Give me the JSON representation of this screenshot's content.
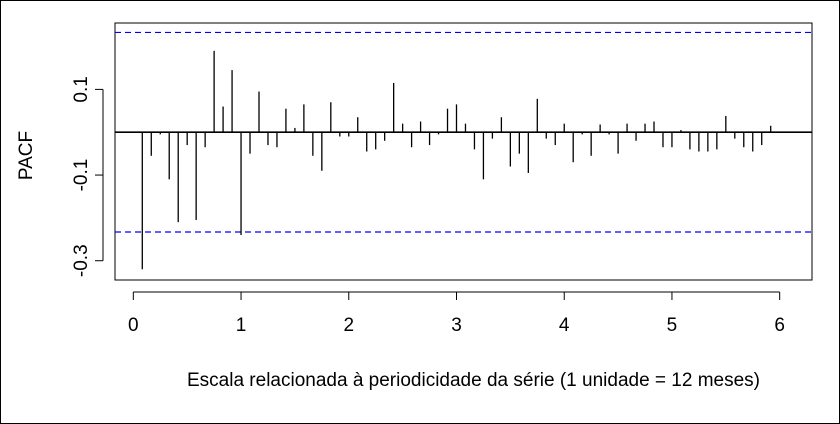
{
  "chart_data": {
    "type": "bar",
    "xlabel": "Escala relacionada à periodicidade da série (1 unidade = 12 meses)",
    "ylabel": "PACF",
    "xlim": [
      -0.17,
      6.3
    ],
    "ylim": [
      -0.345,
      0.255
    ],
    "x_ticks": [
      0,
      1,
      2,
      3,
      4,
      5,
      6
    ],
    "x_tick_labels": [
      "0",
      "1",
      "2",
      "3",
      "4",
      "5",
      "6"
    ],
    "y_ticks": [
      -0.3,
      -0.1,
      0.1
    ],
    "y_tick_labels": [
      "-0.3",
      "-0.1",
      "0.1"
    ],
    "confidence_bounds": [
      0.233,
      -0.233
    ],
    "bound_color": "#0000ff",
    "bar_color": "#000000",
    "grid": false,
    "x": [
      0.0833,
      0.1667,
      0.25,
      0.3333,
      0.4167,
      0.5,
      0.5833,
      0.6667,
      0.75,
      0.8333,
      0.9167,
      1.0,
      1.0833,
      1.1667,
      1.25,
      1.3333,
      1.4167,
      1.5,
      1.5833,
      1.6667,
      1.75,
      1.8333,
      1.9167,
      2.0,
      2.0833,
      2.1667,
      2.25,
      2.3333,
      2.4167,
      2.5,
      2.5833,
      2.6667,
      2.75,
      2.8333,
      2.9167,
      3.0,
      3.0833,
      3.1667,
      3.25,
      3.3333,
      3.4167,
      3.5,
      3.5833,
      3.6667,
      3.75,
      3.8333,
      3.9167,
      4.0,
      4.0833,
      4.1667,
      4.25,
      4.3333,
      4.4167,
      4.5,
      4.5833,
      4.6667,
      4.75,
      4.8333,
      4.9167,
      5.0,
      5.0833,
      5.1667,
      5.25,
      5.3333,
      5.4167,
      5.5,
      5.5833,
      5.6667,
      5.75,
      5.8333,
      5.9167
    ],
    "values": [
      -0.32,
      -0.055,
      -0.005,
      -0.11,
      -0.21,
      -0.03,
      -0.205,
      -0.035,
      0.19,
      0.06,
      0.145,
      -0.24,
      -0.05,
      0.095,
      -0.03,
      -0.035,
      0.055,
      0.01,
      0.065,
      -0.055,
      -0.09,
      0.07,
      -0.01,
      -0.01,
      0.035,
      -0.045,
      -0.04,
      -0.02,
      0.115,
      0.02,
      -0.035,
      0.025,
      -0.03,
      -0.005,
      0.055,
      0.065,
      0.02,
      -0.04,
      -0.11,
      -0.015,
      0.035,
      -0.08,
      -0.05,
      -0.095,
      0.078,
      -0.015,
      -0.03,
      0.02,
      -0.07,
      -0.005,
      -0.055,
      0.018,
      -0.005,
      -0.05,
      0.02,
      -0.02,
      0.02,
      0.025,
      -0.035,
      -0.035,
      0.005,
      -0.04,
      -0.045,
      -0.045,
      -0.04,
      0.038,
      -0.015,
      -0.035,
      -0.045,
      -0.03,
      0.015
    ]
  }
}
